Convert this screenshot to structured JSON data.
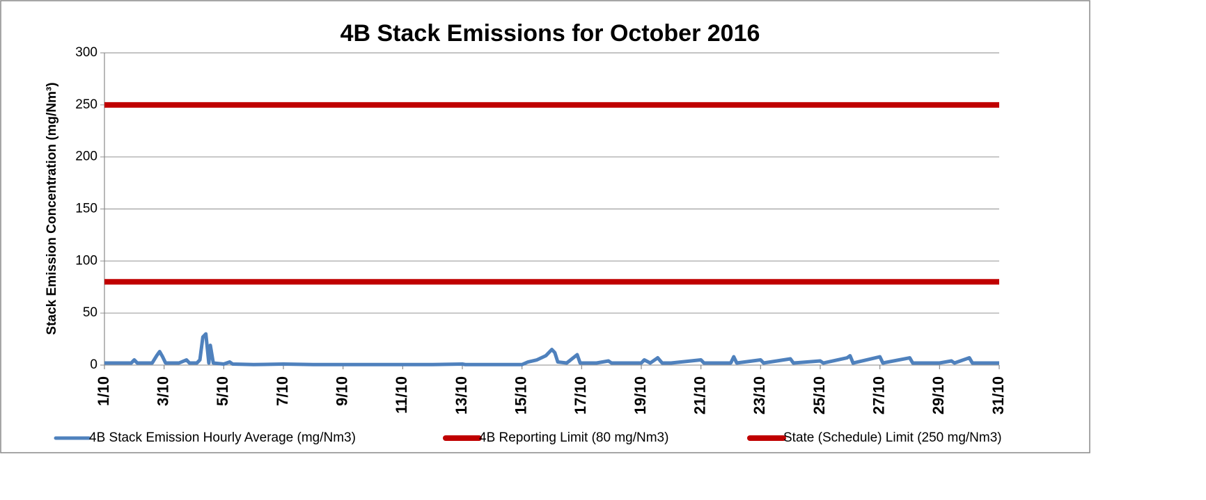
{
  "chart_data": {
    "type": "line",
    "title": "4B Stack Emissions for October 2016",
    "y_label": "Stack Emission Concentration (mg/Nm³)",
    "xlim": [
      1,
      31
    ],
    "xticks": [
      {
        "value": 1,
        "label": "1/10"
      },
      {
        "value": 3,
        "label": "3/10"
      },
      {
        "value": 5,
        "label": "5/10"
      },
      {
        "value": 7,
        "label": "7/10"
      },
      {
        "value": 9,
        "label": "9/10"
      },
      {
        "value": 11,
        "label": "11/10"
      },
      {
        "value": 13,
        "label": "13/10"
      },
      {
        "value": 15,
        "label": "15/10"
      },
      {
        "value": 17,
        "label": "17/10"
      },
      {
        "value": 19,
        "label": "19/10"
      },
      {
        "value": 21,
        "label": "21/10"
      },
      {
        "value": 23,
        "label": "23/10"
      },
      {
        "value": 25,
        "label": "25/10"
      },
      {
        "value": 27,
        "label": "27/10"
      },
      {
        "value": 29,
        "label": "29/10"
      },
      {
        "value": 31,
        "label": "31/10"
      }
    ],
    "ylim": [
      0,
      300
    ],
    "yticks": [
      0,
      50,
      100,
      150,
      200,
      250,
      300
    ],
    "grid": true,
    "legend": "bottom",
    "series": [
      {
        "name": "4B Stack Emission Hourly Average (mg/Nm3)",
        "color": "#4f81bd",
        "width": 5,
        "x": [
          1,
          1.5,
          1.9,
          2.0,
          2.1,
          2.6,
          2.75,
          2.85,
          2.95,
          3.05,
          3.5,
          3.75,
          3.85,
          4.1,
          4.2,
          4.3,
          4.4,
          4.5,
          4.55,
          4.65,
          5.0,
          5.2,
          5.3,
          6,
          7,
          8,
          9,
          10,
          11,
          12,
          13,
          13.1,
          14,
          15,
          15.2,
          15.5,
          15.8,
          16.0,
          16.1,
          16.2,
          16.5,
          16.85,
          16.95,
          17.5,
          17.9,
          18,
          19,
          19.1,
          19.3,
          19.55,
          19.7,
          20,
          21,
          21.1,
          22,
          22.1,
          22.2,
          23,
          23.1,
          24,
          24.1,
          25,
          25.1,
          25.9,
          26,
          26.1,
          27,
          27.1,
          28,
          28.1,
          29,
          29.4,
          29.5,
          30,
          30.1,
          31
        ],
        "values": [
          2,
          2,
          2,
          5,
          2,
          2,
          9,
          13,
          8,
          2,
          2,
          5,
          2,
          2,
          5,
          27,
          30,
          2,
          19,
          2,
          1,
          3,
          1,
          0.5,
          1,
          0.5,
          0.5,
          0.5,
          0.5,
          0.5,
          1,
          0.5,
          0.5,
          0.5,
          3,
          5,
          9,
          15,
          12,
          3,
          2,
          10,
          2,
          2,
          4,
          2,
          2,
          5,
          2,
          7,
          2,
          2,
          5,
          2,
          2,
          8,
          2,
          5,
          2,
          6,
          2,
          4,
          2,
          7,
          9,
          2,
          8,
          2,
          7,
          2,
          2,
          4,
          2,
          7,
          2,
          2
        ]
      },
      {
        "name": "4B Reporting Limit (80 mg/Nm3)",
        "color": "#c00000",
        "width": 8,
        "x": [
          1,
          31
        ],
        "values": [
          80,
          80
        ]
      },
      {
        "name": "State (Schedule) Limit (250 mg/Nm3)",
        "color": "#c00000",
        "width": 8,
        "x": [
          1,
          31
        ],
        "values": [
          250,
          250
        ]
      }
    ]
  }
}
